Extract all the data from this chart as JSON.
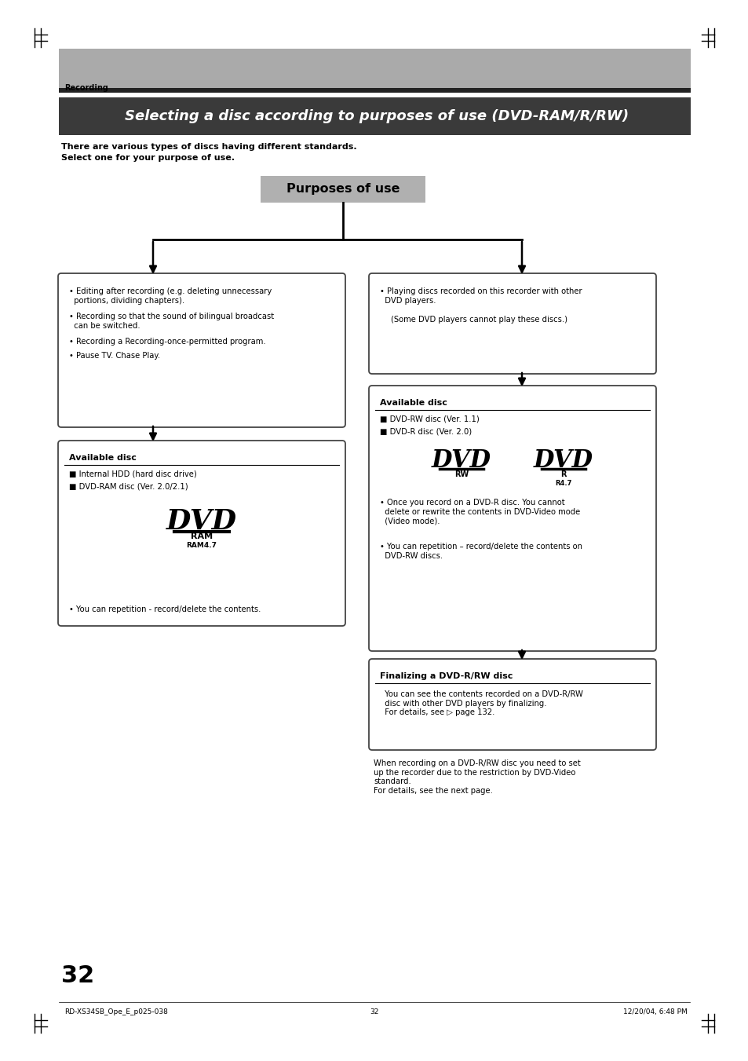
{
  "bg_color": "#ffffff",
  "page_width": 9.54,
  "page_height": 13.51,
  "header_bg": "#aaaaaa",
  "header_dark": "#222222",
  "header_text": "Recording",
  "title_bg": "#3a3a3a",
  "title_text": "Selecting a disc according to purposes of use (DVD-RAM/R/RW)",
  "subtitle1": "There are various types of discs having different standards.",
  "subtitle2": "Select one for your purpose of use.",
  "purposes_box_text": "Purposes of use",
  "left_avail_title": "Available disc",
  "left_avail_items": [
    "■ Internal HDD (hard disc drive)",
    "■ DVD-RAM disc (Ver. 2.0/2.1)"
  ],
  "left_avail_note": "• You can repetition - record/delete the contents.",
  "right_avail_title": "Available disc",
  "right_avail_items": [
    "■ DVD-RW disc (Ver. 1.1)",
    "■ DVD-R disc (Ver. 2.0)"
  ],
  "right_avail_note1": "• Once you record on a DVD-R disc. You cannot\n  delete or rewrite the contents in DVD-Video mode\n  (Video mode).",
  "right_avail_note2": "• You can repetition – record/delete the contents on\n  DVD-RW discs.",
  "finalize_title": "Finalizing a DVD-R/RW disc",
  "finalize_text": "  You can see the contents recorded on a DVD-R/RW\n  disc with other DVD players by finalizing.\n  For details, see ▷ page 132.",
  "below_finalize": "When recording on a DVD-R/RW disc you need to set\nup the recorder due to the restriction by DVD-Video\nstandard.\nFor details, see the next page.",
  "page_num": "32",
  "footer_left": "RD-XS34SB_Ope_E_p025-038",
  "footer_mid": "32",
  "footer_right": "12/20/04, 6:48 PM"
}
